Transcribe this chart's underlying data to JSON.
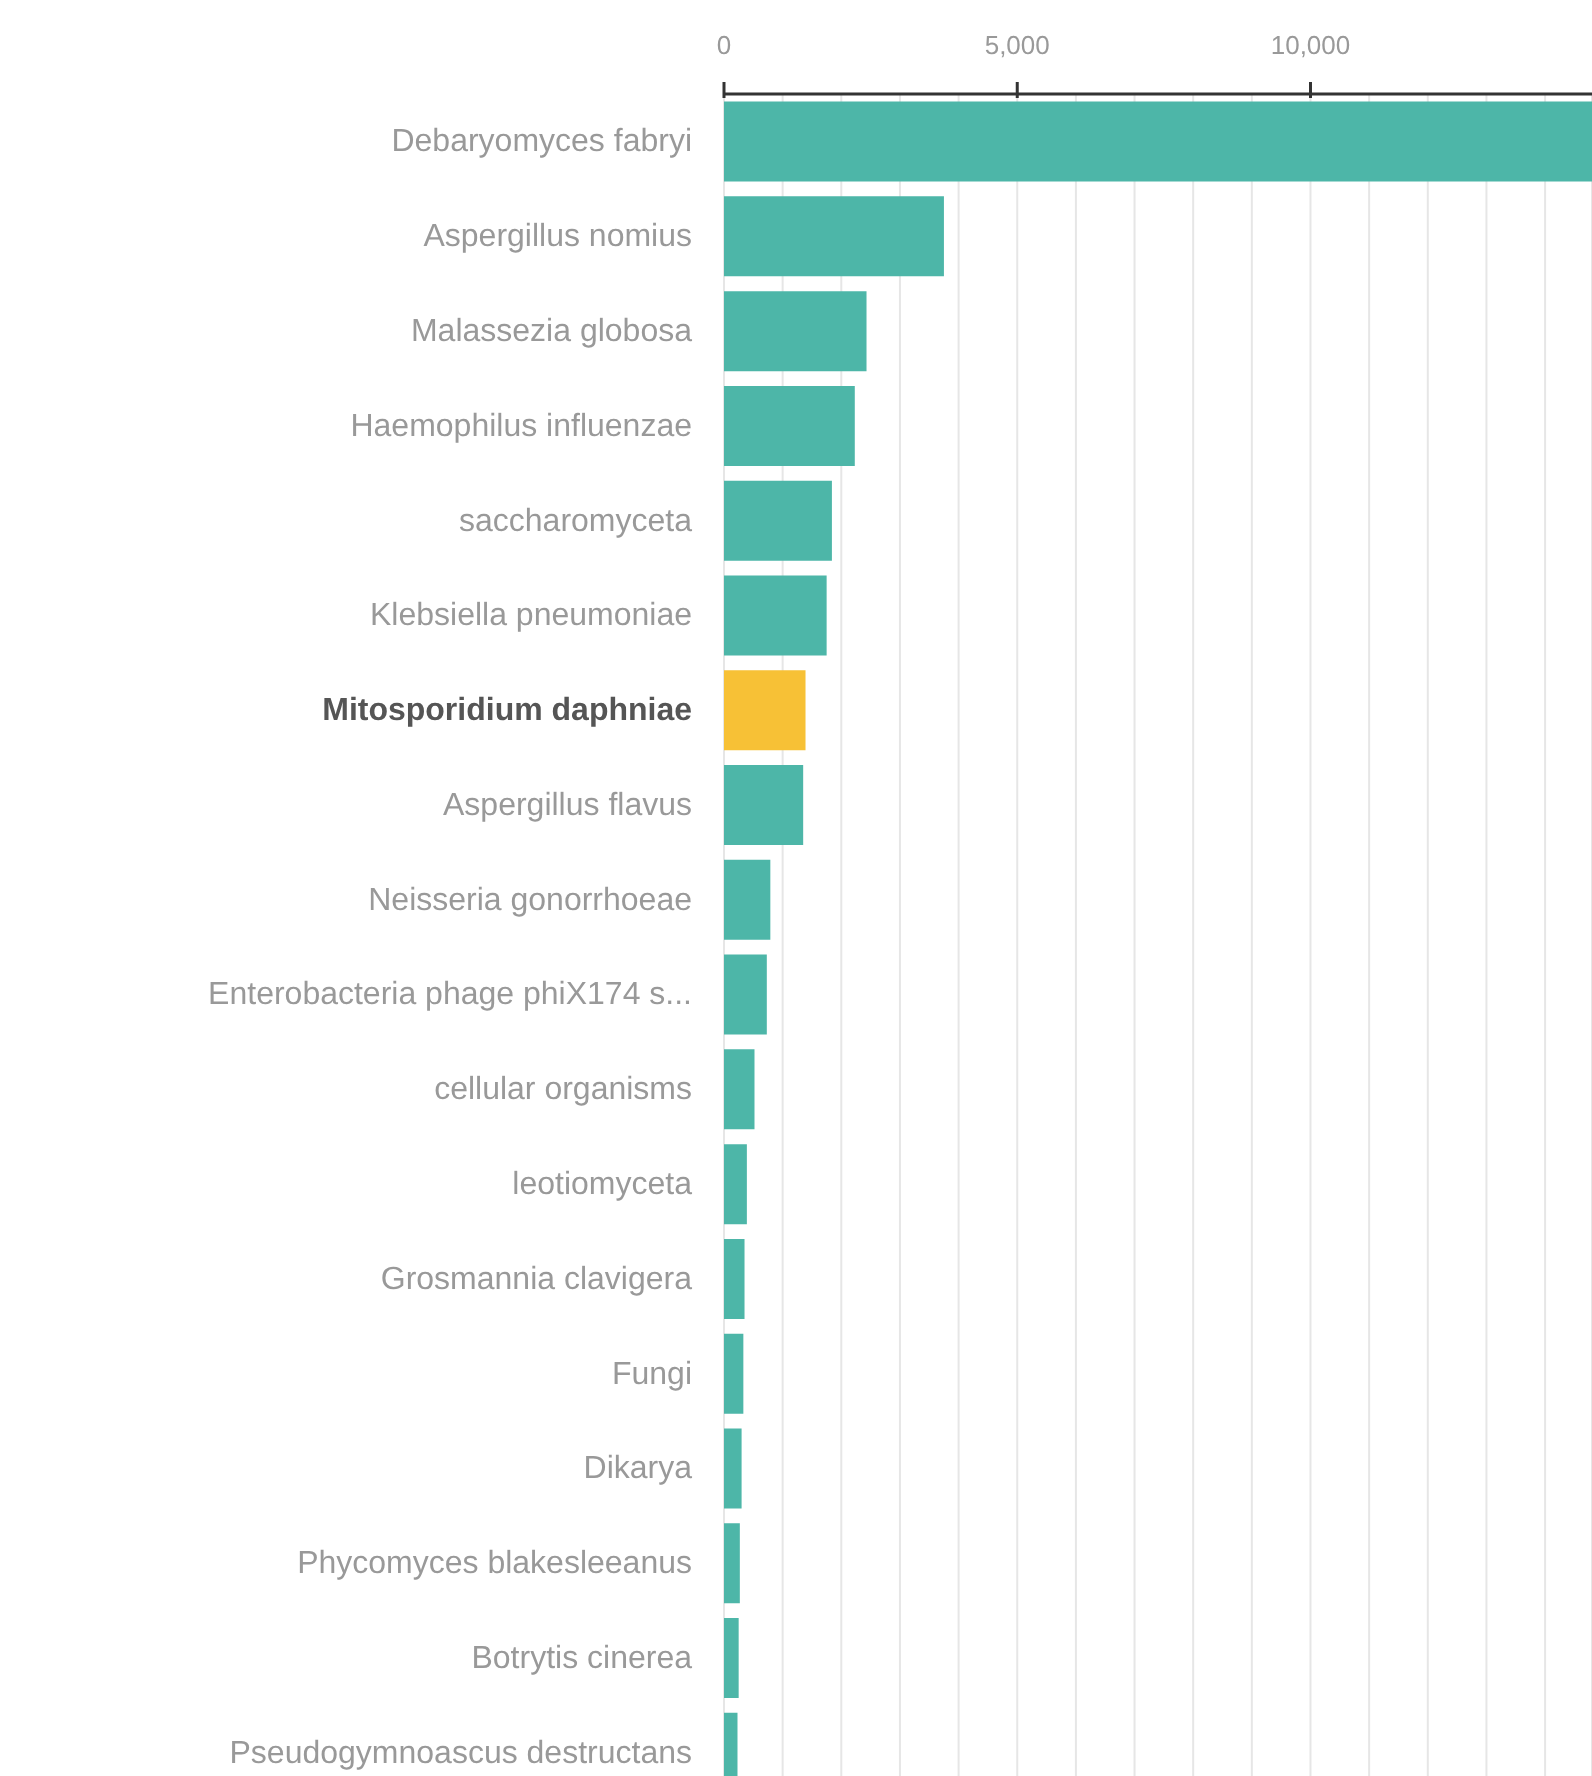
{
  "chart_data": {
    "type": "bar",
    "orientation": "horizontal",
    "categories": [
      "Debaryomyces fabryi",
      "Aspergillus nomius",
      "Malassezia globosa",
      "Haemophilus influenzae",
      "saccharomyceta",
      "Klebsiella pneumoniae",
      "Mitosporidium daphniae",
      "Aspergillus flavus",
      "Neisseria gonorrhoeae",
      "Enterobacteria phage phiX174 s...",
      "cellular organisms",
      "leotiomyceta",
      "Grosmannia clavigera",
      "Fungi",
      "Dikarya",
      "Phycomyces blakesleeanus",
      "Botrytis cinerea",
      "Pseudogymnoascus destructans"
    ],
    "values": [
      14800,
      3750,
      2430,
      2230,
      1840,
      1750,
      1390,
      1350,
      790,
      730,
      520,
      390,
      350,
      330,
      300,
      270,
      250,
      230
    ],
    "colors": [
      "#4db6a8",
      "#4db6a8",
      "#4db6a8",
      "#4db6a8",
      "#4db6a8",
      "#4db6a8",
      "#f7c136",
      "#4db6a8",
      "#4db6a8",
      "#4db6a8",
      "#4db6a8",
      "#4db6a8",
      "#4db6a8",
      "#4db6a8",
      "#4db6a8",
      "#4db6a8",
      "#4db6a8",
      "#4db6a8"
    ],
    "xlim": [
      0,
      14800
    ],
    "xticks": [
      0,
      {
        "value": 1000,
        "label": null
      },
      {
        "value": 2000,
        "label": null
      },
      {
        "value": 3000,
        "label": null
      },
      {
        "value": 4000,
        "label": null
      },
      {
        "value": 5000,
        "label": "5,000"
      },
      {
        "value": 6000,
        "label": null
      },
      {
        "value": 7000,
        "label": null
      },
      {
        "value": 8000,
        "label": null
      },
      {
        "value": 9000,
        "label": null
      },
      {
        "value": 10000,
        "label": "10,000"
      },
      {
        "value": 11000,
        "label": null
      },
      {
        "value": 12000,
        "label": null
      },
      {
        "value": 13000,
        "label": null
      },
      {
        "value": 14000,
        "label": null
      }
    ],
    "grid": "x"
  }
}
